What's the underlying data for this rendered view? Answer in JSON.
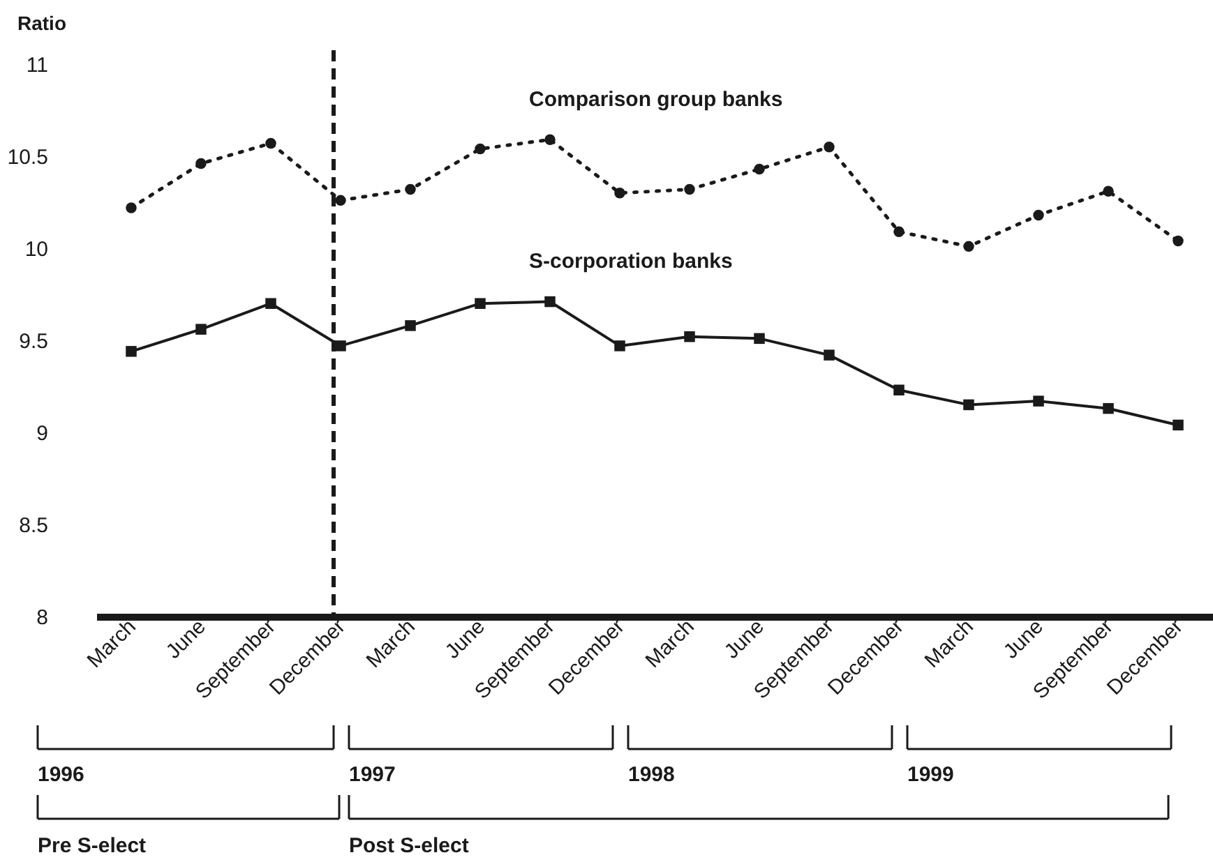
{
  "chart_data": {
    "type": "line",
    "ylabel": "Ratio",
    "categories": [
      "March",
      "June",
      "September",
      "December",
      "March",
      "June",
      "September",
      "December",
      "March",
      "June",
      "September",
      "December",
      "March",
      "June",
      "September",
      "December"
    ],
    "series": [
      {
        "name": "Comparison group banks",
        "color": "#1a1a1a",
        "marker": "circle",
        "line_style": "dotted",
        "values": [
          10.22,
          10.46,
          10.57,
          10.26,
          10.32,
          10.54,
          10.59,
          10.3,
          10.32,
          10.43,
          10.55,
          10.09,
          10.01,
          10.18,
          10.31,
          10.04
        ]
      },
      {
        "name": "S-corporation banks",
        "color": "#1a1a1a",
        "marker": "square",
        "line_style": "solid",
        "values": [
          9.44,
          9.56,
          9.7,
          9.47,
          9.58,
          9.7,
          9.71,
          9.47,
          9.52,
          9.51,
          9.42,
          9.23,
          9.15,
          9.17,
          9.13,
          9.04
        ]
      }
    ],
    "ylim": [
      8,
      11
    ],
    "yticks": [
      8,
      8.5,
      9,
      9.5,
      10,
      10.5,
      11
    ],
    "ref_lines": [
      {
        "axis": "x",
        "value": "December",
        "line_style": "dashed",
        "color": "#1a1a1a"
      }
    ],
    "annotations": [
      "1996",
      "1997",
      "1998",
      "1999",
      "Pre S-elect",
      "Post S-elect"
    ],
    "grid": false,
    "legend": false
  }
}
